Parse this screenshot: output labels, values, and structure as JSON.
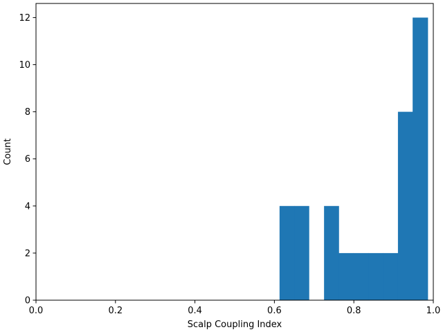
{
  "chart_data": {
    "type": "bar",
    "subtype": "histogram",
    "xlabel": "Scalp Coupling Index",
    "ylabel": "Count",
    "xlim": [
      0.0,
      1.0
    ],
    "ylim": [
      0,
      12.6
    ],
    "grid": false,
    "legend": "none",
    "bar_color": "#1f77b4",
    "x_ticks": [
      {
        "value": 0.0,
        "label": "0.0"
      },
      {
        "value": 0.2,
        "label": "0.2"
      },
      {
        "value": 0.4,
        "label": "0.4"
      },
      {
        "value": 0.6,
        "label": "0.6"
      },
      {
        "value": 0.8,
        "label": "0.8"
      },
      {
        "value": 1.0,
        "label": "1.0"
      }
    ],
    "y_ticks": [
      {
        "value": 0,
        "label": "0"
      },
      {
        "value": 2,
        "label": "2"
      },
      {
        "value": 4,
        "label": "4"
      },
      {
        "value": 6,
        "label": "6"
      },
      {
        "value": 8,
        "label": "8"
      },
      {
        "value": 10,
        "label": "10"
      },
      {
        "value": 12,
        "label": "12"
      }
    ],
    "bins": [
      {
        "x0": 0.613,
        "x1": 0.65,
        "count": 4
      },
      {
        "x0": 0.65,
        "x1": 0.687,
        "count": 4
      },
      {
        "x0": 0.687,
        "x1": 0.725,
        "count": 0
      },
      {
        "x0": 0.725,
        "x1": 0.762,
        "count": 4
      },
      {
        "x0": 0.762,
        "x1": 0.799,
        "count": 2
      },
      {
        "x0": 0.799,
        "x1": 0.837,
        "count": 2
      },
      {
        "x0": 0.837,
        "x1": 0.874,
        "count": 2
      },
      {
        "x0": 0.874,
        "x1": 0.911,
        "count": 2
      },
      {
        "x0": 0.911,
        "x1": 0.948,
        "count": 8
      },
      {
        "x0": 0.948,
        "x1": 0.986,
        "count": 12
      }
    ]
  }
}
